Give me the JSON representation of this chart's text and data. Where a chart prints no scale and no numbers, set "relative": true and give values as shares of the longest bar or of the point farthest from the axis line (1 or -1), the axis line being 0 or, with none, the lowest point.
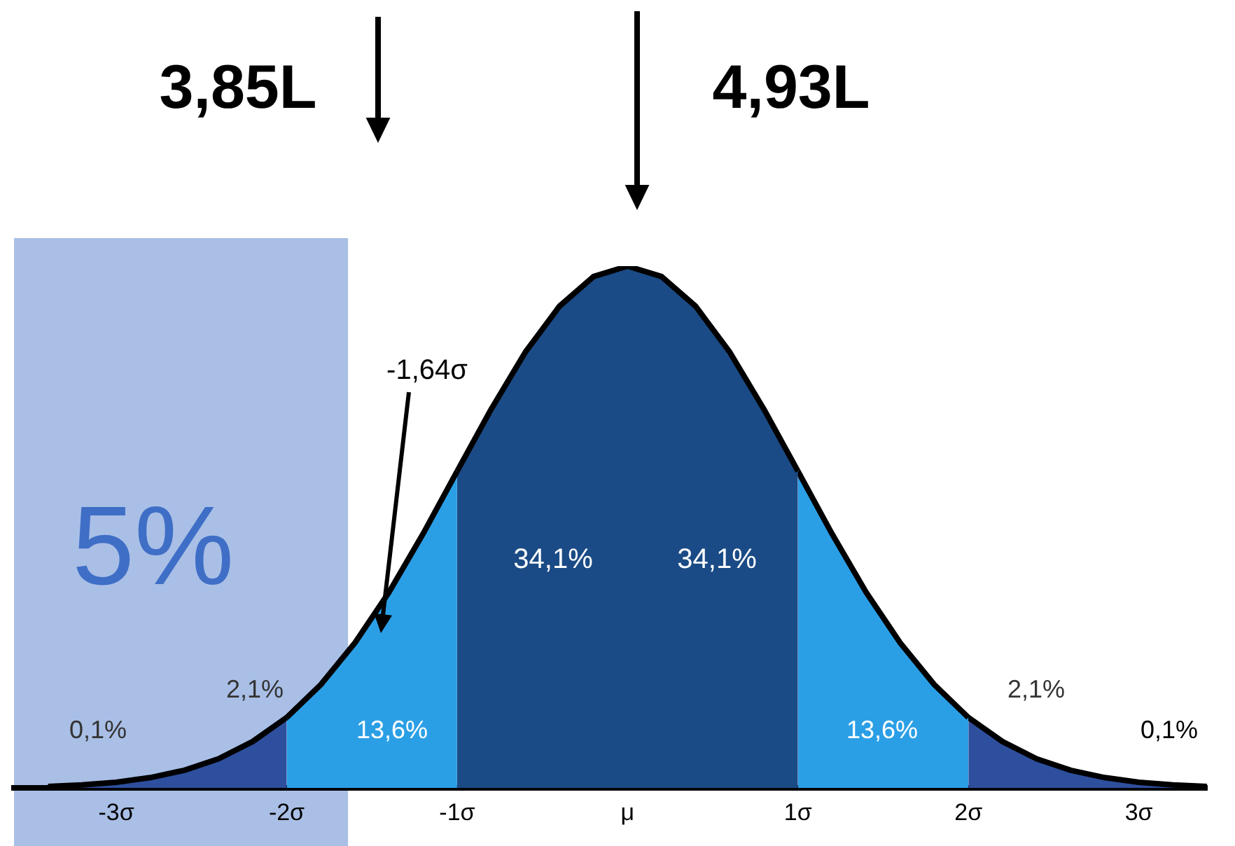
{
  "chart_data": {
    "type": "area",
    "relative": true,
    "xlim": [
      -3.6,
      3.4
    ],
    "xticks": [
      {
        "value": -3,
        "label": "-3σ"
      },
      {
        "value": -2,
        "label": "-2σ"
      },
      {
        "value": -1,
        "label": "-1σ"
      },
      {
        "value": 0,
        "label": "μ"
      },
      {
        "value": 1,
        "label": "1σ"
      },
      {
        "value": 2,
        "label": "2σ"
      },
      {
        "value": 3,
        "label": "3σ"
      }
    ],
    "series": [
      {
        "color": "#2e4f9e",
        "x": [
          -3.4,
          -3.2,
          -3.0,
          -2.8,
          -2.6,
          -2.4,
          -2.2,
          -2.0
        ],
        "values": [
          0.003,
          0.006,
          0.011,
          0.02,
          0.034,
          0.056,
          0.089,
          0.135
        ]
      },
      {
        "color": "#2b9fe6",
        "x": [
          -2.0,
          -1.8,
          -1.6,
          -1.4,
          -1.2,
          -1.0
        ],
        "values": [
          0.135,
          0.198,
          0.278,
          0.375,
          0.487,
          0.607
        ]
      },
      {
        "color": "#1b4b86",
        "x": [
          -1.0,
          -0.8,
          -0.6,
          -0.4,
          -0.2,
          0,
          0.2,
          0.4,
          0.6,
          0.8,
          1.0
        ],
        "values": [
          0.607,
          0.726,
          0.835,
          0.923,
          0.98,
          1,
          0.98,
          0.923,
          0.835,
          0.726,
          0.607
        ]
      },
      {
        "color": "#2b9fe6",
        "x": [
          1.0,
          1.2,
          1.4,
          1.6,
          1.8,
          2.0
        ],
        "values": [
          0.607,
          0.487,
          0.375,
          0.278,
          0.198,
          0.135
        ]
      },
      {
        "color": "#2e4f9e",
        "x": [
          2.0,
          2.2,
          2.4,
          2.6,
          2.8,
          3.0,
          3.2,
          3.4
        ],
        "values": [
          0.135,
          0.089,
          0.056,
          0.034,
          0.02,
          0.011,
          0.006,
          0.003
        ]
      }
    ],
    "bands": [
      {
        "axis": "x",
        "from": -3.6,
        "to": -1.64,
        "label": "5%",
        "color": "#a9bfe6"
      }
    ],
    "annotations": [
      "3,85L",
      "4,93L",
      "-1,64σ",
      "0,1%",
      "2,1%",
      "13,6%",
      "34,1%",
      "34,1%",
      "13,6%",
      "2,1%",
      "0,1%"
    ]
  }
}
